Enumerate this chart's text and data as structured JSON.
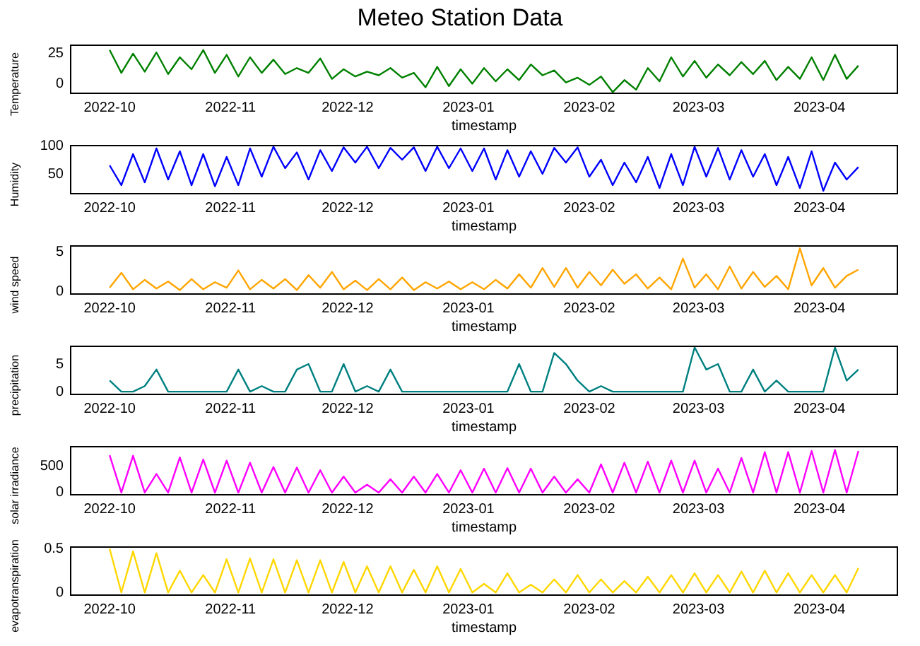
{
  "chart_data": [
    {
      "type": "line",
      "title": "Meteo Station Data",
      "xlabel": "timestamp",
      "ylabel": "Temperature",
      "color": "#008000",
      "xlim": [
        "2022-09-21",
        "2023-04-21"
      ],
      "ylim": [
        -8,
        32
      ],
      "yticks": [
        0,
        25
      ],
      "xticks": [
        {
          "value": "2022-10-01",
          "label": "2022-10"
        },
        {
          "value": "2022-11-01",
          "label": "2022-11"
        },
        {
          "value": "2022-12-01",
          "label": "2022-12"
        },
        {
          "value": "2023-01-01",
          "label": "2023-01"
        },
        {
          "value": "2023-02-01",
          "label": "2023-02"
        },
        {
          "value": "2023-03-01",
          "label": "2023-03"
        },
        {
          "value": "2023-04-01",
          "label": "2023-04"
        }
      ],
      "x": [
        "2022-10-01",
        "2022-10-04",
        "2022-10-07",
        "2022-10-10",
        "2022-10-13",
        "2022-10-16",
        "2022-10-19",
        "2022-10-22",
        "2022-10-25",
        "2022-10-28",
        "2022-10-31",
        "2022-11-03",
        "2022-11-06",
        "2022-11-09",
        "2022-11-12",
        "2022-11-15",
        "2022-11-18",
        "2022-11-21",
        "2022-11-24",
        "2022-11-27",
        "2022-11-30",
        "2022-12-03",
        "2022-12-06",
        "2022-12-09",
        "2022-12-12",
        "2022-12-15",
        "2022-12-18",
        "2022-12-21",
        "2022-12-24",
        "2022-12-27",
        "2022-12-30",
        "2023-01-02",
        "2023-01-05",
        "2023-01-08",
        "2023-01-11",
        "2023-01-14",
        "2023-01-17",
        "2023-01-20",
        "2023-01-23",
        "2023-01-26",
        "2023-01-29",
        "2023-02-01",
        "2023-02-04",
        "2023-02-07",
        "2023-02-10",
        "2023-02-13",
        "2023-02-16",
        "2023-02-19",
        "2023-02-22",
        "2023-02-25",
        "2023-02-28",
        "2023-03-03",
        "2023-03-06",
        "2023-03-09",
        "2023-03-12",
        "2023-03-15",
        "2023-03-18",
        "2023-03-21",
        "2023-03-24",
        "2023-03-27",
        "2023-03-30",
        "2023-04-02",
        "2023-04-05",
        "2023-04-08",
        "2023-04-11"
      ],
      "values": [
        28,
        9,
        25,
        10,
        26,
        8,
        22,
        12,
        28,
        9,
        24,
        6,
        22,
        9,
        20,
        8,
        13,
        9,
        21,
        4,
        12,
        6,
        10,
        7,
        13,
        5,
        9,
        -3,
        14,
        -2,
        12,
        0,
        13,
        2,
        12,
        3,
        16,
        7,
        11,
        1,
        5,
        -1,
        6,
        -7,
        3,
        -5,
        13,
        2,
        22,
        6,
        19,
        5,
        16,
        7,
        18,
        8,
        19,
        3,
        14,
        4,
        22,
        3,
        24,
        4,
        15
      ]
    },
    {
      "type": "line",
      "xlabel": "timestamp",
      "ylabel": "Humidity",
      "color": "#0000ff",
      "xlim": [
        "2022-09-21",
        "2023-04-21"
      ],
      "ylim": [
        15,
        100
      ],
      "yticks": [
        50,
        100
      ],
      "xticks": [
        {
          "value": "2022-10-01",
          "label": "2022-10"
        },
        {
          "value": "2022-11-01",
          "label": "2022-11"
        },
        {
          "value": "2022-12-01",
          "label": "2022-12"
        },
        {
          "value": "2023-01-01",
          "label": "2023-01"
        },
        {
          "value": "2023-02-01",
          "label": "2023-02"
        },
        {
          "value": "2023-03-01",
          "label": "2023-03"
        },
        {
          "value": "2023-04-01",
          "label": "2023-04"
        }
      ],
      "x": [
        "2022-10-01",
        "2022-10-04",
        "2022-10-07",
        "2022-10-10",
        "2022-10-13",
        "2022-10-16",
        "2022-10-19",
        "2022-10-22",
        "2022-10-25",
        "2022-10-28",
        "2022-10-31",
        "2022-11-03",
        "2022-11-06",
        "2022-11-09",
        "2022-11-12",
        "2022-11-15",
        "2022-11-18",
        "2022-11-21",
        "2022-11-24",
        "2022-11-27",
        "2022-11-30",
        "2022-12-03",
        "2022-12-06",
        "2022-12-09",
        "2022-12-12",
        "2022-12-15",
        "2022-12-18",
        "2022-12-21",
        "2022-12-24",
        "2022-12-27",
        "2022-12-30",
        "2023-01-02",
        "2023-01-05",
        "2023-01-08",
        "2023-01-11",
        "2023-01-14",
        "2023-01-17",
        "2023-01-20",
        "2023-01-23",
        "2023-01-26",
        "2023-01-29",
        "2023-02-01",
        "2023-02-04",
        "2023-02-07",
        "2023-02-10",
        "2023-02-13",
        "2023-02-16",
        "2023-02-19",
        "2023-02-22",
        "2023-02-25",
        "2023-02-28",
        "2023-03-03",
        "2023-03-06",
        "2023-03-09",
        "2023-03-12",
        "2023-03-15",
        "2023-03-18",
        "2023-03-21",
        "2023-03-24",
        "2023-03-27",
        "2023-03-30",
        "2023-04-02",
        "2023-04-05",
        "2023-04-08",
        "2023-04-11"
      ],
      "values": [
        65,
        30,
        85,
        35,
        95,
        40,
        90,
        30,
        85,
        28,
        80,
        30,
        95,
        45,
        98,
        60,
        88,
        40,
        92,
        55,
        97,
        70,
        98,
        60,
        96,
        75,
        97,
        55,
        98,
        60,
        95,
        55,
        95,
        40,
        92,
        45,
        90,
        50,
        96,
        70,
        97,
        45,
        75,
        30,
        70,
        35,
        80,
        25,
        85,
        30,
        98,
        45,
        96,
        40,
        92,
        45,
        85,
        30,
        80,
        25,
        90,
        20,
        70,
        40,
        62
      ]
    },
    {
      "type": "line",
      "xlabel": "timestamp",
      "ylabel": "wind speed",
      "color": "#ffa500",
      "xlim": [
        "2022-09-21",
        "2023-04-21"
      ],
      "ylim": [
        -0.3,
        5.8
      ],
      "yticks": [
        0,
        5
      ],
      "xticks": [
        {
          "value": "2022-10-01",
          "label": "2022-10"
        },
        {
          "value": "2022-11-01",
          "label": "2022-11"
        },
        {
          "value": "2022-12-01",
          "label": "2022-12"
        },
        {
          "value": "2023-01-01",
          "label": "2023-01"
        },
        {
          "value": "2023-02-01",
          "label": "2023-02"
        },
        {
          "value": "2023-03-01",
          "label": "2023-03"
        },
        {
          "value": "2023-04-01",
          "label": "2023-04"
        }
      ],
      "x": [
        "2022-10-01",
        "2022-10-04",
        "2022-10-07",
        "2022-10-10",
        "2022-10-13",
        "2022-10-16",
        "2022-10-19",
        "2022-10-22",
        "2022-10-25",
        "2022-10-28",
        "2022-10-31",
        "2022-11-03",
        "2022-11-06",
        "2022-11-09",
        "2022-11-12",
        "2022-11-15",
        "2022-11-18",
        "2022-11-21",
        "2022-11-24",
        "2022-11-27",
        "2022-11-30",
        "2022-12-03",
        "2022-12-06",
        "2022-12-09",
        "2022-12-12",
        "2022-12-15",
        "2022-12-18",
        "2022-12-21",
        "2022-12-24",
        "2022-12-27",
        "2022-12-30",
        "2023-01-02",
        "2023-01-05",
        "2023-01-08",
        "2023-01-11",
        "2023-01-14",
        "2023-01-17",
        "2023-01-20",
        "2023-01-23",
        "2023-01-26",
        "2023-01-29",
        "2023-02-01",
        "2023-02-04",
        "2023-02-07",
        "2023-02-10",
        "2023-02-13",
        "2023-02-16",
        "2023-02-19",
        "2023-02-22",
        "2023-02-25",
        "2023-02-28",
        "2023-03-03",
        "2023-03-06",
        "2023-03-09",
        "2023-03-12",
        "2023-03-15",
        "2023-03-18",
        "2023-03-21",
        "2023-03-24",
        "2023-03-27",
        "2023-03-30",
        "2023-04-02",
        "2023-04-05",
        "2023-04-08",
        "2023-04-11"
      ],
      "values": [
        0.5,
        2.4,
        0.3,
        1.5,
        0.4,
        1.3,
        0.2,
        1.6,
        0.3,
        1.2,
        0.5,
        2.7,
        0.3,
        1.5,
        0.4,
        1.6,
        0.2,
        2.1,
        0.5,
        2.5,
        0.3,
        1.4,
        0.2,
        1.6,
        0.3,
        1.8,
        0.2,
        1.2,
        0.4,
        1.3,
        0.3,
        1.2,
        0.3,
        1.5,
        0.4,
        2.2,
        0.5,
        3.0,
        0.6,
        3.0,
        0.5,
        2.5,
        0.8,
        2.8,
        1.0,
        2.2,
        0.4,
        1.8,
        0.3,
        4.2,
        0.5,
        2.2,
        0.3,
        3.2,
        0.4,
        2.5,
        0.6,
        2.0,
        0.3,
        5.5,
        0.8,
        3.0,
        0.5,
        2.0,
        2.8
      ]
    },
    {
      "type": "line",
      "xlabel": "timestamp",
      "ylabel": "precipitation",
      "color": "#008080",
      "xlim": [
        "2022-09-21",
        "2023-04-21"
      ],
      "ylim": [
        -0.5,
        8.2
      ],
      "yticks": [
        0,
        5
      ],
      "xticks": [
        {
          "value": "2022-10-01",
          "label": "2022-10"
        },
        {
          "value": "2022-11-01",
          "label": "2022-11"
        },
        {
          "value": "2022-12-01",
          "label": "2022-12"
        },
        {
          "value": "2023-01-01",
          "label": "2023-01"
        },
        {
          "value": "2023-02-01",
          "label": "2023-02"
        },
        {
          "value": "2023-03-01",
          "label": "2023-03"
        },
        {
          "value": "2023-04-01",
          "label": "2023-04"
        }
      ],
      "x": [
        "2022-10-01",
        "2022-10-04",
        "2022-10-07",
        "2022-10-10",
        "2022-10-13",
        "2022-10-16",
        "2022-10-19",
        "2022-10-22",
        "2022-10-25",
        "2022-10-28",
        "2022-10-31",
        "2022-11-03",
        "2022-11-06",
        "2022-11-09",
        "2022-11-12",
        "2022-11-15",
        "2022-11-18",
        "2022-11-21",
        "2022-11-24",
        "2022-11-27",
        "2022-11-30",
        "2022-12-03",
        "2022-12-06",
        "2022-12-09",
        "2022-12-12",
        "2022-12-15",
        "2022-12-18",
        "2022-12-21",
        "2022-12-24",
        "2022-12-27",
        "2022-12-30",
        "2023-01-02",
        "2023-01-05",
        "2023-01-08",
        "2023-01-11",
        "2023-01-14",
        "2023-01-17",
        "2023-01-20",
        "2023-01-23",
        "2023-01-26",
        "2023-01-29",
        "2023-02-01",
        "2023-02-04",
        "2023-02-07",
        "2023-02-10",
        "2023-02-13",
        "2023-02-16",
        "2023-02-19",
        "2023-02-22",
        "2023-02-25",
        "2023-02-28",
        "2023-03-03",
        "2023-03-06",
        "2023-03-09",
        "2023-03-12",
        "2023-03-15",
        "2023-03-18",
        "2023-03-21",
        "2023-03-24",
        "2023-03-27",
        "2023-03-30",
        "2023-04-02",
        "2023-04-05",
        "2023-04-08",
        "2023-04-11"
      ],
      "values": [
        2,
        0,
        0,
        1,
        4,
        0,
        0,
        0,
        0,
        0,
        0,
        4,
        0,
        1,
        0,
        0,
        4,
        5,
        0,
        0,
        5,
        0,
        1,
        0,
        4,
        0,
        0,
        0,
        0,
        0,
        0,
        0,
        0,
        0,
        0,
        5,
        0,
        0,
        7,
        5,
        2,
        0,
        1,
        0,
        0,
        0,
        0,
        0,
        0,
        0,
        8,
        4,
        5,
        0,
        0,
        4,
        0,
        2,
        0,
        0,
        0,
        0,
        8,
        2,
        4
      ]
    },
    {
      "type": "line",
      "xlabel": "timestamp",
      "ylabel": "solar irradiance",
      "color": "#ff00ff",
      "xlim": [
        "2022-09-21",
        "2023-04-21"
      ],
      "ylim": [
        -40,
        860
      ],
      "yticks": [
        0,
        500
      ],
      "xticks": [
        {
          "value": "2022-10-01",
          "label": "2022-10"
        },
        {
          "value": "2022-11-01",
          "label": "2022-11"
        },
        {
          "value": "2022-12-01",
          "label": "2022-12"
        },
        {
          "value": "2023-01-01",
          "label": "2023-01"
        },
        {
          "value": "2023-02-01",
          "label": "2023-02"
        },
        {
          "value": "2023-03-01",
          "label": "2023-03"
        },
        {
          "value": "2023-04-01",
          "label": "2023-04"
        }
      ],
      "x": [
        "2022-10-01",
        "2022-10-04",
        "2022-10-07",
        "2022-10-10",
        "2022-10-13",
        "2022-10-16",
        "2022-10-19",
        "2022-10-22",
        "2022-10-25",
        "2022-10-28",
        "2022-10-31",
        "2022-11-03",
        "2022-11-06",
        "2022-11-09",
        "2022-11-12",
        "2022-11-15",
        "2022-11-18",
        "2022-11-21",
        "2022-11-24",
        "2022-11-27",
        "2022-11-30",
        "2022-12-03",
        "2022-12-06",
        "2022-12-09",
        "2022-12-12",
        "2022-12-15",
        "2022-12-18",
        "2022-12-21",
        "2022-12-24",
        "2022-12-27",
        "2022-12-30",
        "2023-01-02",
        "2023-01-05",
        "2023-01-08",
        "2023-01-11",
        "2023-01-14",
        "2023-01-17",
        "2023-01-20",
        "2023-01-23",
        "2023-01-26",
        "2023-01-29",
        "2023-02-01",
        "2023-02-04",
        "2023-02-07",
        "2023-02-10",
        "2023-02-13",
        "2023-02-16",
        "2023-02-19",
        "2023-02-22",
        "2023-02-25",
        "2023-02-28",
        "2023-03-03",
        "2023-03-06",
        "2023-03-09",
        "2023-03-12",
        "2023-03-15",
        "2023-03-18",
        "2023-03-21",
        "2023-03-24",
        "2023-03-27",
        "2023-03-30",
        "2023-04-02",
        "2023-04-05",
        "2023-04-08",
        "2023-04-11"
      ],
      "values": [
        700,
        0,
        690,
        0,
        350,
        0,
        660,
        0,
        620,
        0,
        600,
        0,
        560,
        0,
        480,
        0,
        470,
        0,
        420,
        0,
        300,
        0,
        150,
        0,
        250,
        0,
        300,
        0,
        350,
        0,
        420,
        0,
        450,
        0,
        460,
        0,
        450,
        0,
        300,
        0,
        250,
        0,
        530,
        0,
        560,
        0,
        580,
        0,
        600,
        0,
        600,
        0,
        450,
        0,
        650,
        0,
        760,
        0,
        760,
        0,
        780,
        0,
        800,
        0,
        780
      ]
    },
    {
      "type": "line",
      "xlabel": "timestamp",
      "ylabel": "evapotranspiration",
      "color": "#ffd700",
      "xlim": [
        "2022-09-21",
        "2023-04-21"
      ],
      "ylim": [
        -0.03,
        0.52
      ],
      "yticks": [
        0,
        0.5
      ],
      "xticks": [
        {
          "value": "2022-10-01",
          "label": "2022-10"
        },
        {
          "value": "2022-11-01",
          "label": "2022-11"
        },
        {
          "value": "2022-12-01",
          "label": "2022-12"
        },
        {
          "value": "2023-01-01",
          "label": "2023-01"
        },
        {
          "value": "2023-02-01",
          "label": "2023-02"
        },
        {
          "value": "2023-03-01",
          "label": "2023-03"
        },
        {
          "value": "2023-04-01",
          "label": "2023-04"
        }
      ],
      "x": [
        "2022-10-01",
        "2022-10-04",
        "2022-10-07",
        "2022-10-10",
        "2022-10-13",
        "2022-10-16",
        "2022-10-19",
        "2022-10-22",
        "2022-10-25",
        "2022-10-28",
        "2022-10-31",
        "2022-11-03",
        "2022-11-06",
        "2022-11-09",
        "2022-11-12",
        "2022-11-15",
        "2022-11-18",
        "2022-11-21",
        "2022-11-24",
        "2022-11-27",
        "2022-11-30",
        "2022-12-03",
        "2022-12-06",
        "2022-12-09",
        "2022-12-12",
        "2022-12-15",
        "2022-12-18",
        "2022-12-21",
        "2022-12-24",
        "2022-12-27",
        "2022-12-30",
        "2023-01-02",
        "2023-01-05",
        "2023-01-08",
        "2023-01-11",
        "2023-01-14",
        "2023-01-17",
        "2023-01-20",
        "2023-01-23",
        "2023-01-26",
        "2023-01-29",
        "2023-02-01",
        "2023-02-04",
        "2023-02-07",
        "2023-02-10",
        "2023-02-13",
        "2023-02-16",
        "2023-02-19",
        "2023-02-22",
        "2023-02-25",
        "2023-02-28",
        "2023-03-03",
        "2023-03-06",
        "2023-03-09",
        "2023-03-12",
        "2023-03-15",
        "2023-03-18",
        "2023-03-21",
        "2023-03-24",
        "2023-03-27",
        "2023-03-30",
        "2023-04-02",
        "2023-04-05",
        "2023-04-08",
        "2023-04-11"
      ],
      "values": [
        0.5,
        0,
        0.47,
        0,
        0.45,
        0,
        0.25,
        0,
        0.2,
        0,
        0.38,
        0,
        0.39,
        0,
        0.38,
        0,
        0.37,
        0,
        0.37,
        0,
        0.35,
        0,
        0.3,
        0,
        0.3,
        0,
        0.26,
        0,
        0.3,
        0,
        0.27,
        0,
        0.1,
        0,
        0.22,
        0,
        0.09,
        0,
        0.15,
        0,
        0.2,
        0,
        0.15,
        0,
        0.13,
        0,
        0.18,
        0,
        0.2,
        0,
        0.22,
        0,
        0.2,
        0,
        0.24,
        0,
        0.25,
        0,
        0.22,
        0,
        0.2,
        0,
        0.2,
        0,
        0.28
      ]
    }
  ]
}
